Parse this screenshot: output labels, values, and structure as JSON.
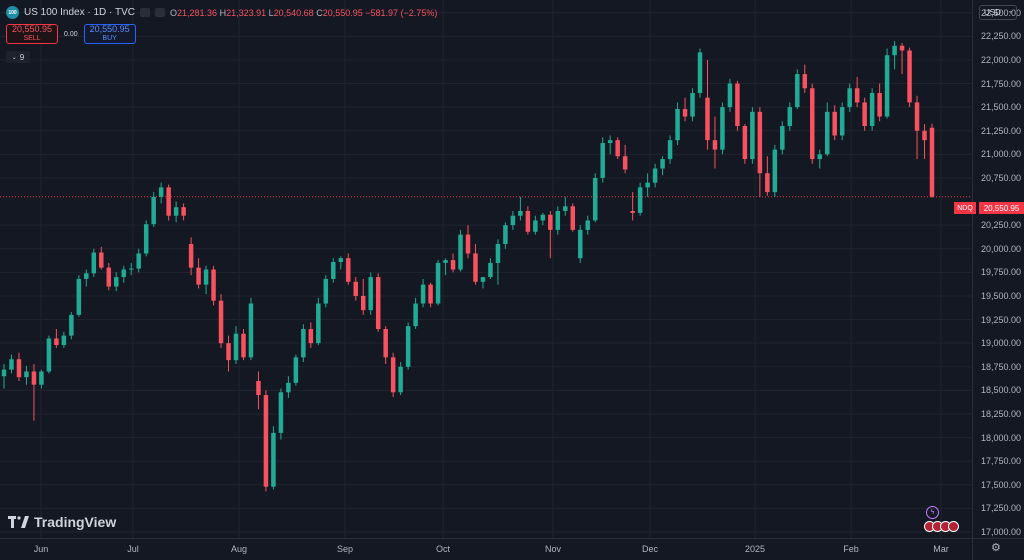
{
  "legend": {
    "logo_text": "100",
    "title": "US 100 Index · 1D · TVC",
    "ohlc": {
      "o_label": "O",
      "o": "21,281.36",
      "h_label": "H",
      "h": "21,323.91",
      "l_label": "L",
      "l": "20,540.68",
      "c_label": "C",
      "c": "20,550.95",
      "change": "−581.97 (−2.75%)"
    }
  },
  "trade": {
    "sell_price": "20,550.95",
    "sell_label": "SELL",
    "spread": "0.00",
    "buy_price": "20,550.95",
    "buy_label": "BUY"
  },
  "indicators_toggle": {
    "label": "9"
  },
  "currency": {
    "label": "USD"
  },
  "last_price": {
    "symbol": "NDQ",
    "value": "20,550.95"
  },
  "logo": {
    "text": "TradingView"
  },
  "colors": {
    "up": "#22ab94",
    "down": "#f7525f",
    "bg": "#141823",
    "grid": "#1f232e"
  },
  "price_axis": [
    "22,500.00",
    "22,250.00",
    "22,000.00",
    "21,750.00",
    "21,500.00",
    "21,250.00",
    "21,000.00",
    "20,750.00",
    "20,250.00",
    "20,000.00",
    "19,750.00",
    "19,500.00",
    "19,250.00",
    "19,000.00",
    "18,750.00",
    "18,500.00",
    "18,250.00",
    "18,000.00",
    "17,750.00",
    "17,500.00",
    "17,250.00",
    "17,000.00"
  ],
  "time_axis": [
    "Jun",
    "Jul",
    "Aug",
    "Sep",
    "Oct",
    "Nov",
    "Dec",
    "2025",
    "Feb",
    "Mar"
  ],
  "chart_data": {
    "type": "candlestick",
    "ylim": [
      17000,
      22550
    ],
    "last": 20550.95,
    "candles": [
      [
        18650,
        18780,
        18520,
        18720
      ],
      [
        18720,
        18880,
        18680,
        18830
      ],
      [
        18830,
        18900,
        18600,
        18640
      ],
      [
        18640,
        18760,
        18560,
        18700
      ],
      [
        18700,
        18780,
        18180,
        18560
      ],
      [
        18560,
        18720,
        18520,
        18700
      ],
      [
        18700,
        19080,
        18680,
        19050
      ],
      [
        19050,
        19150,
        18950,
        18980
      ],
      [
        18980,
        19120,
        18950,
        19080
      ],
      [
        19080,
        19330,
        19040,
        19300
      ],
      [
        19300,
        19720,
        19280,
        19680
      ],
      [
        19680,
        19780,
        19600,
        19740
      ],
      [
        19740,
        20000,
        19700,
        19960
      ],
      [
        19960,
        20020,
        19780,
        19800
      ],
      [
        19800,
        19850,
        19560,
        19600
      ],
      [
        19600,
        19750,
        19550,
        19700
      ],
      [
        19700,
        19820,
        19640,
        19780
      ],
      [
        19780,
        19850,
        19720,
        19790
      ],
      [
        19790,
        20000,
        19750,
        19950
      ],
      [
        19950,
        20300,
        19920,
        20260
      ],
      [
        20260,
        20600,
        20230,
        20550
      ],
      [
        20550,
        20700,
        20480,
        20650
      ],
      [
        20650,
        20680,
        20300,
        20350
      ],
      [
        20350,
        20500,
        20280,
        20440
      ],
      [
        20440,
        20480,
        20300,
        20350
      ],
      [
        20050,
        20120,
        19720,
        19800
      ],
      [
        19800,
        19900,
        19580,
        19620
      ],
      [
        19620,
        19820,
        19520,
        19780
      ],
      [
        19780,
        19820,
        19400,
        19450
      ],
      [
        19450,
        19520,
        18950,
        19000
      ],
      [
        19000,
        19080,
        18700,
        18820
      ],
      [
        18820,
        19180,
        18780,
        19100
      ],
      [
        19100,
        19150,
        18820,
        18850
      ],
      [
        18850,
        19480,
        18820,
        19420
      ],
      [
        18600,
        18700,
        18300,
        18450
      ],
      [
        18450,
        18500,
        17430,
        17480
      ],
      [
        17480,
        18120,
        17450,
        18050
      ],
      [
        18050,
        18520,
        17980,
        18480
      ],
      [
        18480,
        18650,
        18420,
        18580
      ],
      [
        18580,
        18880,
        18550,
        18850
      ],
      [
        18850,
        19200,
        18800,
        19150
      ],
      [
        19150,
        19220,
        18950,
        19000
      ],
      [
        19000,
        19480,
        18980,
        19420
      ],
      [
        19420,
        19720,
        19380,
        19680
      ],
      [
        19680,
        19900,
        19640,
        19860
      ],
      [
        19860,
        19920,
        19780,
        19900
      ],
      [
        19900,
        19950,
        19620,
        19650
      ],
      [
        19650,
        19700,
        19450,
        19500
      ],
      [
        19500,
        19680,
        19300,
        19350
      ],
      [
        19350,
        19750,
        19300,
        19700
      ],
      [
        19700,
        19740,
        19120,
        19150
      ],
      [
        19150,
        19180,
        18780,
        18850
      ],
      [
        18850,
        18900,
        18430,
        18480
      ],
      [
        18480,
        18800,
        18450,
        18750
      ],
      [
        18750,
        19220,
        18720,
        19180
      ],
      [
        19180,
        19480,
        19150,
        19420
      ],
      [
        19420,
        19680,
        19380,
        19620
      ],
      [
        19620,
        19640,
        19380,
        19420
      ],
      [
        19420,
        19880,
        19400,
        19850
      ],
      [
        19850,
        19900,
        19720,
        19880
      ],
      [
        19880,
        19950,
        19750,
        19780
      ],
      [
        19780,
        20200,
        19760,
        20150
      ],
      [
        20150,
        20250,
        19900,
        19950
      ],
      [
        19950,
        20050,
        19620,
        19650
      ],
      [
        19650,
        19700,
        19580,
        19700
      ],
      [
        19700,
        19900,
        19680,
        19850
      ],
      [
        19850,
        20100,
        19620,
        20050
      ],
      [
        20050,
        20280,
        20000,
        20250
      ],
      [
        20250,
        20400,
        20200,
        20350
      ],
      [
        20350,
        20550,
        20300,
        20400
      ],
      [
        20400,
        20450,
        20150,
        20180
      ],
      [
        20180,
        20350,
        20150,
        20300
      ],
      [
        20300,
        20380,
        20250,
        20360
      ],
      [
        20360,
        20400,
        19900,
        20200
      ],
      [
        20200,
        20450,
        20150,
        20400
      ],
      [
        20400,
        20550,
        20350,
        20450
      ],
      [
        20450,
        20480,
        20180,
        20200
      ],
      [
        19900,
        20250,
        19850,
        20200
      ],
      [
        20200,
        20350,
        20150,
        20300
      ],
      [
        20300,
        20800,
        20280,
        20750
      ],
      [
        20750,
        21180,
        20700,
        21120
      ],
      [
        21120,
        21200,
        21000,
        21150
      ],
      [
        21150,
        21180,
        20950,
        20980
      ],
      [
        20980,
        21100,
        20800,
        20840
      ],
      [
        20400,
        20600,
        20300,
        20380
      ],
      [
        20380,
        20700,
        20350,
        20650
      ],
      [
        20650,
        20800,
        20550,
        20700
      ],
      [
        20700,
        20900,
        20650,
        20850
      ],
      [
        20850,
        20980,
        20780,
        20950
      ],
      [
        20950,
        21200,
        20900,
        21150
      ],
      [
        21150,
        21550,
        21100,
        21480
      ],
      [
        21480,
        21600,
        21350,
        21400
      ],
      [
        21400,
        21700,
        21350,
        21650
      ],
      [
        21650,
        22120,
        21600,
        22080
      ],
      [
        21600,
        22000,
        21050,
        21150
      ],
      [
        21150,
        21400,
        20850,
        21050
      ],
      [
        21050,
        21550,
        21000,
        21500
      ],
      [
        21500,
        21800,
        21450,
        21750
      ],
      [
        21750,
        21780,
        21250,
        21300
      ],
      [
        21300,
        21320,
        20900,
        20950
      ],
      [
        20950,
        21500,
        20900,
        21450
      ],
      [
        21450,
        21500,
        20550,
        20800
      ],
      [
        20800,
        20980,
        20560,
        20600
      ],
      [
        20600,
        21100,
        20550,
        21050
      ],
      [
        21050,
        21350,
        21000,
        21300
      ],
      [
        21300,
        21550,
        21250,
        21500
      ],
      [
        21500,
        21900,
        21480,
        21850
      ],
      [
        21850,
        21950,
        21650,
        21700
      ],
      [
        21700,
        21750,
        20900,
        20950
      ],
      [
        20950,
        21050,
        20850,
        21000
      ],
      [
        21000,
        21550,
        20980,
        21450
      ],
      [
        21450,
        21520,
        21150,
        21200
      ],
      [
        21200,
        21550,
        21150,
        21500
      ],
      [
        21500,
        21750,
        21450,
        21700
      ],
      [
        21700,
        21820,
        21500,
        21550
      ],
      [
        21550,
        21600,
        21250,
        21300
      ],
      [
        21300,
        21700,
        21250,
        21650
      ],
      [
        21650,
        21750,
        21350,
        21400
      ],
      [
        21400,
        22120,
        21380,
        22050
      ],
      [
        22050,
        22200,
        21900,
        22150
      ],
      [
        22150,
        22180,
        21850,
        22100
      ],
      [
        22100,
        22130,
        21500,
        21550
      ],
      [
        21550,
        21620,
        20950,
        21250
      ],
      [
        21250,
        21320,
        20950,
        21150
      ],
      [
        21281.36,
        21323.91,
        20540.68,
        20550.95
      ]
    ]
  }
}
